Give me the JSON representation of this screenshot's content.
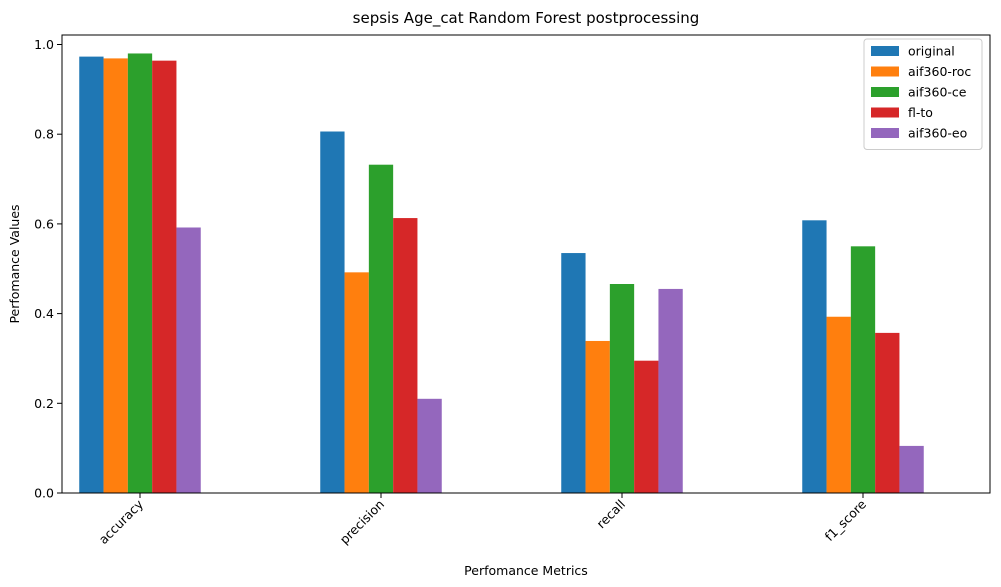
{
  "chart_data": {
    "type": "bar",
    "title": "sepsis Age_cat Random Forest postprocessing",
    "xlabel": "Perfomance Metrics",
    "ylabel": "Perfomance Values",
    "categories": [
      "accuracy",
      "precision",
      "recall",
      "f1_score"
    ],
    "ylim": [
      0,
      1.02
    ],
    "yticks": [
      "0.0",
      "0.2",
      "0.4",
      "0.6",
      "0.8",
      "1.0"
    ],
    "grid": false,
    "legend_position": "top-right",
    "series": [
      {
        "name": "original",
        "color": "#1f77b4",
        "values": [
          0.973,
          0.806,
          0.535,
          0.608
        ]
      },
      {
        "name": "aif360-roc",
        "color": "#ff7f0e",
        "values": [
          0.969,
          0.492,
          0.339,
          0.393
        ]
      },
      {
        "name": "aif360-ce",
        "color": "#2ca02c",
        "values": [
          0.98,
          0.732,
          0.466,
          0.55
        ]
      },
      {
        "name": "fl-to",
        "color": "#d62728",
        "values": [
          0.964,
          0.613,
          0.295,
          0.357
        ]
      },
      {
        "name": "aif360-eo",
        "color": "#9467bd",
        "values": [
          0.592,
          0.21,
          0.455,
          0.105
        ]
      }
    ]
  }
}
